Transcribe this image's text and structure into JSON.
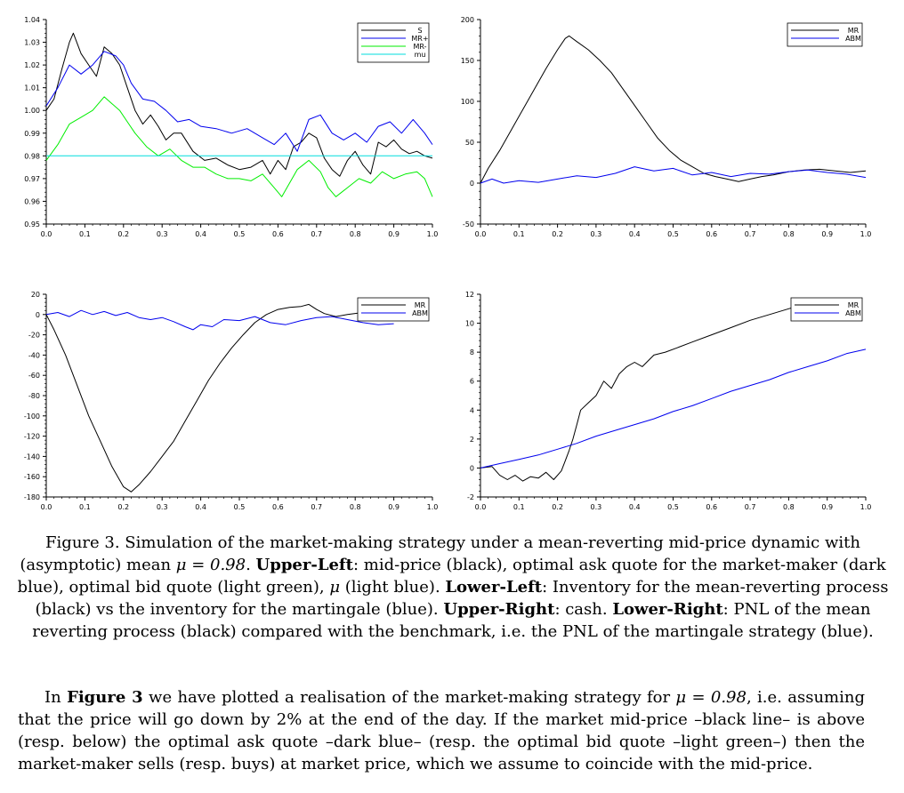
{
  "chart_data": [
    {
      "type": "line",
      "id": "upper-left",
      "xlim": [
        0,
        1
      ],
      "ylim": [
        0.95,
        1.04
      ],
      "xticks": [
        "0.0",
        "0.1",
        "0.2",
        "0.3",
        "0.4",
        "0.5",
        "0.6",
        "0.7",
        "0.8",
        "0.9",
        "1.0"
      ],
      "yticks": [
        "0.95",
        "0.96",
        "0.97",
        "0.98",
        "0.99",
        "1.00",
        "1.01",
        "1.02",
        "1.03",
        "1.04"
      ],
      "legend_position": "top-right",
      "series": [
        {
          "name": "S",
          "color": "#000000",
          "x": [
            0,
            0.02,
            0.04,
            0.06,
            0.07,
            0.09,
            0.11,
            0.13,
            0.15,
            0.17,
            0.19,
            0.21,
            0.23,
            0.25,
            0.27,
            0.29,
            0.31,
            0.33,
            0.35,
            0.38,
            0.41,
            0.44,
            0.47,
            0.5,
            0.53,
            0.56,
            0.58,
            0.6,
            0.62,
            0.64,
            0.66,
            0.68,
            0.7,
            0.72,
            0.74,
            0.76,
            0.78,
            0.8,
            0.82,
            0.84,
            0.86,
            0.88,
            0.9,
            0.92,
            0.94,
            0.96,
            0.98,
            1.0
          ],
          "y": [
            1.0,
            1.005,
            1.018,
            1.03,
            1.034,
            1.025,
            1.02,
            1.015,
            1.028,
            1.025,
            1.02,
            1.01,
            1.0,
            0.994,
            0.998,
            0.993,
            0.987,
            0.99,
            0.99,
            0.982,
            0.978,
            0.979,
            0.976,
            0.974,
            0.975,
            0.978,
            0.972,
            0.978,
            0.974,
            0.984,
            0.986,
            0.99,
            0.988,
            0.979,
            0.974,
            0.971,
            0.978,
            0.982,
            0.976,
            0.972,
            0.986,
            0.984,
            0.987,
            0.983,
            0.981,
            0.982,
            0.98,
            0.979
          ]
        },
        {
          "name": "MR+",
          "color": "#0000ee",
          "x": [
            0,
            0.03,
            0.06,
            0.09,
            0.12,
            0.15,
            0.18,
            0.2,
            0.22,
            0.25,
            0.28,
            0.31,
            0.34,
            0.37,
            0.4,
            0.44,
            0.48,
            0.52,
            0.56,
            0.59,
            0.62,
            0.65,
            0.68,
            0.71,
            0.74,
            0.77,
            0.8,
            0.83,
            0.86,
            0.89,
            0.92,
            0.95,
            0.98,
            1.0
          ],
          "y": [
            1.002,
            1.01,
            1.02,
            1.016,
            1.02,
            1.026,
            1.024,
            1.02,
            1.012,
            1.005,
            1.004,
            1.0,
            0.995,
            0.996,
            0.993,
            0.992,
            0.99,
            0.992,
            0.988,
            0.985,
            0.99,
            0.982,
            0.996,
            0.998,
            0.99,
            0.987,
            0.99,
            0.986,
            0.993,
            0.995,
            0.99,
            0.996,
            0.99,
            0.985
          ]
        },
        {
          "name": "MR-",
          "color": "#00ee00",
          "x": [
            0,
            0.03,
            0.06,
            0.09,
            0.12,
            0.15,
            0.17,
            0.19,
            0.21,
            0.23,
            0.26,
            0.29,
            0.32,
            0.35,
            0.38,
            0.41,
            0.44,
            0.47,
            0.5,
            0.53,
            0.56,
            0.59,
            0.61,
            0.63,
            0.65,
            0.68,
            0.71,
            0.73,
            0.75,
            0.78,
            0.81,
            0.84,
            0.87,
            0.9,
            0.93,
            0.96,
            0.98,
            1.0
          ],
          "y": [
            0.978,
            0.985,
            0.994,
            0.997,
            1.0,
            1.006,
            1.003,
            1.0,
            0.995,
            0.99,
            0.984,
            0.98,
            0.983,
            0.978,
            0.975,
            0.975,
            0.972,
            0.97,
            0.97,
            0.969,
            0.972,
            0.966,
            0.962,
            0.968,
            0.974,
            0.978,
            0.973,
            0.966,
            0.962,
            0.966,
            0.97,
            0.968,
            0.973,
            0.97,
            0.972,
            0.973,
            0.97,
            0.962
          ]
        },
        {
          "name": "mu",
          "color": "#00dddd",
          "x": [
            0,
            1.0
          ],
          "y": [
            0.98,
            0.98
          ]
        }
      ]
    },
    {
      "type": "line",
      "id": "upper-right",
      "xlim": [
        0,
        1
      ],
      "ylim": [
        -50,
        200
      ],
      "xticks": [
        "0.0",
        "0.1",
        "0.2",
        "0.3",
        "0.4",
        "0.5",
        "0.6",
        "0.7",
        "0.8",
        "0.9",
        "1.0"
      ],
      "yticks": [
        "-50",
        "0",
        "50",
        "100",
        "150",
        "200"
      ],
      "legend_position": "top-right",
      "series": [
        {
          "name": "MR",
          "color": "#000000",
          "x": [
            0,
            0.02,
            0.05,
            0.08,
            0.11,
            0.14,
            0.17,
            0.2,
            0.22,
            0.23,
            0.25,
            0.28,
            0.31,
            0.34,
            0.37,
            0.4,
            0.43,
            0.46,
            0.49,
            0.52,
            0.55,
            0.58,
            0.61,
            0.64,
            0.67,
            0.7,
            0.73,
            0.76,
            0.8,
            0.84,
            0.88,
            0.92,
            0.96,
            1.0
          ],
          "y": [
            0,
            18,
            40,
            65,
            90,
            115,
            140,
            163,
            177,
            180,
            173,
            163,
            150,
            135,
            115,
            95,
            75,
            55,
            40,
            28,
            20,
            12,
            8,
            5,
            2,
            5,
            8,
            10,
            14,
            16,
            17,
            15,
            13,
            15
          ]
        },
        {
          "name": "ABM",
          "color": "#0000ee",
          "x": [
            0,
            0.03,
            0.06,
            0.1,
            0.15,
            0.2,
            0.25,
            0.3,
            0.35,
            0.4,
            0.45,
            0.5,
            0.55,
            0.6,
            0.65,
            0.7,
            0.75,
            0.8,
            0.85,
            0.9,
            0.95,
            1.0
          ],
          "y": [
            0,
            5,
            0,
            3,
            1,
            5,
            9,
            7,
            12,
            20,
            15,
            18,
            10,
            13,
            8,
            12,
            11,
            14,
            16,
            13,
            11,
            7
          ]
        }
      ]
    },
    {
      "type": "line",
      "id": "lower-left",
      "xlim": [
        0,
        1
      ],
      "ylim": [
        -180,
        20
      ],
      "xticks": [
        "0.0",
        "0.1",
        "0.2",
        "0.3",
        "0.4",
        "0.5",
        "0.6",
        "0.7",
        "0.8",
        "0.9",
        "1.0"
      ],
      "yticks": [
        "-180",
        "-160",
        "-140",
        "-120",
        "-100",
        "-80",
        "-60",
        "-40",
        "-20",
        "0",
        "20"
      ],
      "legend_position": "top-right",
      "series": [
        {
          "name": "MR",
          "color": "#000000",
          "x": [
            0,
            0.02,
            0.05,
            0.08,
            0.11,
            0.14,
            0.17,
            0.2,
            0.22,
            0.24,
            0.27,
            0.3,
            0.33,
            0.36,
            0.39,
            0.42,
            0.45,
            0.48,
            0.51,
            0.54,
            0.57,
            0.6,
            0.63,
            0.66,
            0.68,
            0.7,
            0.72,
            0.75,
            0.78,
            0.82,
            0.86,
            0.9
          ],
          "y": [
            0,
            -15,
            -40,
            -70,
            -100,
            -125,
            -150,
            -170,
            -175,
            -168,
            -155,
            -140,
            -125,
            -105,
            -85,
            -65,
            -48,
            -33,
            -20,
            -8,
            0,
            5,
            7,
            8,
            10,
            5,
            1,
            -2,
            0,
            2,
            5,
            2
          ]
        },
        {
          "name": "ABM",
          "color": "#0000ee",
          "x": [
            0,
            0.03,
            0.06,
            0.09,
            0.12,
            0.15,
            0.18,
            0.21,
            0.24,
            0.27,
            0.3,
            0.33,
            0.36,
            0.38,
            0.4,
            0.43,
            0.46,
            0.5,
            0.54,
            0.58,
            0.62,
            0.66,
            0.7,
            0.74,
            0.78,
            0.82,
            0.86,
            0.9
          ],
          "y": [
            0,
            2,
            -2,
            4,
            0,
            3,
            -1,
            2,
            -3,
            -5,
            -3,
            -7,
            -12,
            -15,
            -10,
            -12,
            -5,
            -6,
            -2,
            -8,
            -10,
            -6,
            -3,
            -2,
            -5,
            -8,
            -10,
            -9
          ]
        }
      ]
    },
    {
      "type": "line",
      "id": "lower-right",
      "xlim": [
        0,
        1
      ],
      "ylim": [
        -2,
        12
      ],
      "xticks": [
        "0.0",
        "0.1",
        "0.2",
        "0.3",
        "0.4",
        "0.5",
        "0.6",
        "0.7",
        "0.8",
        "0.9",
        "1.0"
      ],
      "yticks": [
        "-2",
        "0",
        "2",
        "4",
        "6",
        "8",
        "10",
        "12"
      ],
      "legend_position": "top-right",
      "series": [
        {
          "name": "MR",
          "color": "#000000",
          "x": [
            0,
            0.03,
            0.05,
            0.07,
            0.09,
            0.11,
            0.13,
            0.15,
            0.17,
            0.19,
            0.21,
            0.22,
            0.23,
            0.24,
            0.25,
            0.26,
            0.28,
            0.3,
            0.32,
            0.34,
            0.36,
            0.38,
            0.4,
            0.42,
            0.45,
            0.48,
            0.51,
            0.55,
            0.6,
            0.65,
            0.7,
            0.75,
            0.8,
            0.85,
            0.9
          ],
          "y": [
            0,
            0.1,
            -0.5,
            -0.8,
            -0.5,
            -0.9,
            -0.6,
            -0.7,
            -0.3,
            -0.8,
            -0.2,
            0.5,
            1.2,
            2.0,
            3.0,
            4.0,
            4.5,
            5.0,
            6.0,
            5.5,
            6.5,
            7.0,
            7.3,
            7.0,
            7.8,
            8.0,
            8.3,
            8.7,
            9.2,
            9.7,
            10.2,
            10.6,
            11.0,
            11.4,
            11.7
          ]
        },
        {
          "name": "ABM",
          "color": "#0000ee",
          "x": [
            0,
            0.05,
            0.1,
            0.15,
            0.2,
            0.25,
            0.3,
            0.35,
            0.4,
            0.45,
            0.5,
            0.55,
            0.6,
            0.65,
            0.7,
            0.75,
            0.8,
            0.85,
            0.9,
            0.95,
            1.0
          ],
          "y": [
            0,
            0.3,
            0.6,
            0.9,
            1.3,
            1.7,
            2.2,
            2.6,
            3.0,
            3.4,
            3.9,
            4.3,
            4.8,
            5.3,
            5.7,
            6.1,
            6.6,
            7.0,
            7.4,
            7.9,
            8.2
          ]
        }
      ]
    }
  ],
  "caption": {
    "lead": "Figure 3. Simulation of the market-making strategy under a mean-reverting mid-price dynamic with (asymptotic) mean ",
    "mu_eq": "μ = 0.98",
    "after_mu": ". ",
    "ul_label": "Upper-Left",
    "ul_text": ": mid-price (black), optimal ask quote for the market-maker (dark blue), optimal bid quote (light green), ",
    "ul_mu": "μ",
    "ul_tail": " (light blue). ",
    "ll_label": "Lower-Left",
    "ll_text": ": Inventory for the mean-reverting process (black) vs the inventory for the martingale (blue). ",
    "ur_label": "Upper-Right",
    "ur_text": ": cash. ",
    "lr_label": "Lower-Right",
    "lr_text": ": PNL of the mean reverting process (black) compared with the benchmark, i.e. the PNL of the martingale strategy (blue)."
  },
  "paragraph": {
    "t1": "In ",
    "bold": "Figure 3",
    "t2": " we have plotted a realisation of the market-making strategy for ",
    "mu_eq": "μ = 0.98",
    "t3": ", i.e. assuming that the price will go down by 2% at the end of the day. If the market mid-price –black line– is above (resp. below) the optimal ask quote –dark blue– (resp. the optimal bid quote –light green–) then the market-maker sells (resp. buys) at market price, which we assume to coincide with the mid-price."
  }
}
